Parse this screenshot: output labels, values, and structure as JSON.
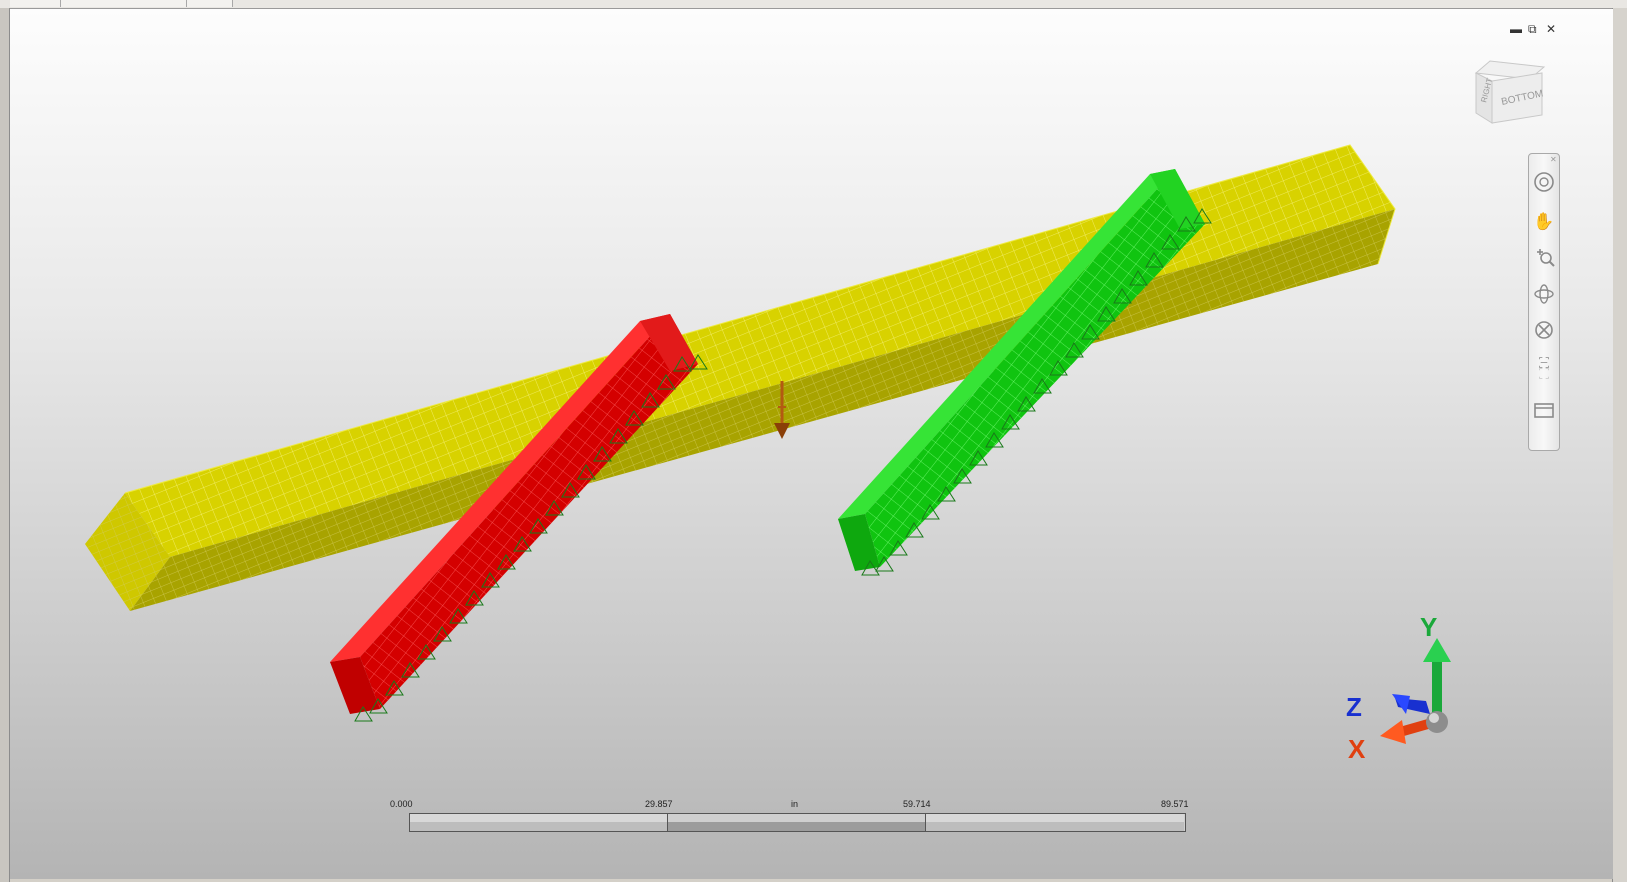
{
  "window": {
    "controls": [
      "minimize-icon",
      "restore-icon",
      "close-icon"
    ]
  },
  "viewcube": {
    "faces": [
      "RIGHT",
      "BOTTOM"
    ]
  },
  "navbar": {
    "tools": [
      "full-navigation-wheel-icon",
      "pan-icon",
      "zoom-icon",
      "orbit-icon",
      "center-icon",
      "zoom-extents-icon",
      "view-mode-icon"
    ]
  },
  "model": {
    "parts": [
      {
        "name": "yellow-beam",
        "color": "#d8d200"
      },
      {
        "name": "red-beam",
        "color": "#d40000"
      },
      {
        "name": "green-beam",
        "color": "#10c410"
      }
    ],
    "load_arrow_color": "#b35a12",
    "constraint_color": "#1a7a1a"
  },
  "scale_bar": {
    "labels": [
      "0.000",
      "29.857",
      "in",
      "59.714",
      "89.571"
    ]
  },
  "triad": {
    "x_label": "X",
    "y_label": "Y",
    "z_label": "Z",
    "x_color": "#e04010",
    "y_color": "#1aa83a",
    "z_color": "#1830d0"
  }
}
